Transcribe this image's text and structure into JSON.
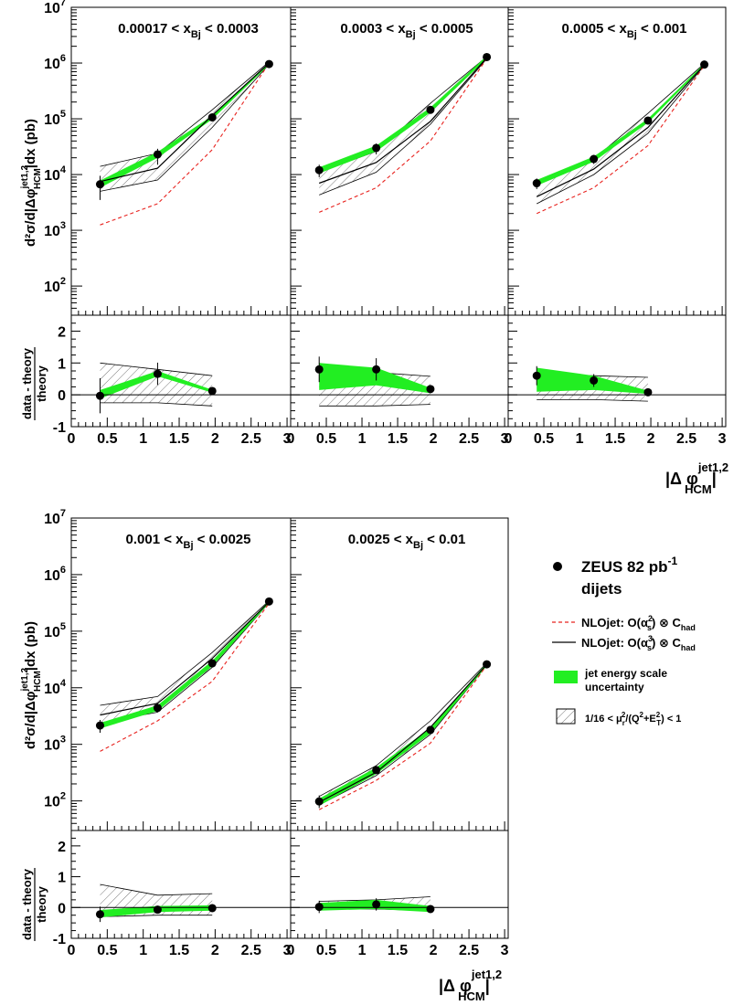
{
  "figure": {
    "x_axis_label_main": "|Δ φ",
    "x_axis_label_sup": "jet1,2",
    "x_axis_label_sub": "HCM",
    "x_axis_label_tail": "|",
    "y_axis_label_upper": "d²σ/d|Δφ",
    "y_axis_label_upper_sup": "jet1,2",
    "y_axis_label_upper_sub": "HCM",
    "y_axis_label_upper_tail": "|dx (pb)",
    "y_axis_label_ratio_num": "data - theory",
    "y_axis_label_ratio_den": "theory",
    "x_ticks": [
      "0",
      "0.5",
      "1",
      "1.5",
      "2",
      "2.5",
      "3"
    ],
    "y_ticks_main_base": "10",
    "y_ticks_main_exp": [
      "2",
      "3",
      "4",
      "5",
      "6",
      "7"
    ],
    "y_ticks_ratio": [
      "-1",
      "0",
      "1",
      "2"
    ]
  },
  "legend": {
    "data": "ZEUS 82 pb",
    "data_sup": "-1",
    "data_line2": "dijets",
    "nlo2": "NLOjet: O(α",
    "nlo2_sup": "2",
    "nlo2_sub": "s",
    "nlo2_tail": ") ⊗ C",
    "nlo2_tail_sub": "had",
    "nlo3": "NLOjet: O(α",
    "nlo3_sup": "3",
    "nlo3_sub": "s",
    "nlo3_tail": ") ⊗ C",
    "nlo3_tail_sub": "had",
    "jes_line1": "jet energy scale",
    "jes_line2": "uncertainty",
    "scale": "1/16 < μ",
    "scale_sub": "r",
    "scale_sup": "2",
    "scale_mid": "/(Q",
    "scale_sup2": "2",
    "scale_mid2": "+E",
    "scale_sup3": "2",
    "scale_sub3": "T",
    "scale_tail": ") < 1"
  },
  "colors": {
    "data": "#000000",
    "nlo2": "#e8231f",
    "nlo3": "#000000",
    "jes_band": "#22ee22",
    "hatch": "#555555"
  },
  "chart_data": [
    {
      "type": "line",
      "panel": 1,
      "title_pre": "0.00017 < x",
      "title_sub": "Bj",
      "title_post": " < 0.0003",
      "x": [
        0.4,
        1.2,
        1.96,
        2.75
      ],
      "data": [
        6700.0,
        23000.0,
        106000.0,
        960000.0
      ],
      "data_err_lo": [
        3500.0,
        15000.0,
        90000.0,
        900000.0
      ],
      "data_err_hi": [
        9500.0,
        29000.0,
        120000.0,
        1020000.0
      ],
      "nlo2": [
        1250.0,
        3000.0,
        28000.0,
        1000000.0
      ],
      "nlo3": [
        7500.0,
        13000.0,
        115000.0,
        1000000.0
      ],
      "scale_lo": [
        5000.0,
        8000.0,
        70000.0,
        950000.0
      ],
      "scale_hi": [
        14000.0,
        24000.0,
        145000.0,
        1050000.0
      ],
      "jes_lo": [
        5800.0,
        20000.0,
        98000.0,
        930000.0
      ],
      "jes_hi": [
        7800.0,
        25500.0,
        113000.0,
        990000.0
      ],
      "ratio": [
        -0.03,
        0.66,
        0.12
      ],
      "ratio_err": [
        0.55,
        0.35,
        0.12
      ],
      "ratio_scale_lo": [
        -0.25,
        -0.25,
        -0.35
      ],
      "ratio_scale_hi": [
        1.0,
        0.8,
        0.6
      ],
      "ratio_jes_lo": [
        -0.12,
        0.58,
        0.07
      ],
      "ratio_jes_hi": [
        0.15,
        0.75,
        0.16
      ],
      "ylim": [
        30,
        10000000.0
      ],
      "ratio_ylim": [
        -1,
        2.5
      ],
      "xlim": [
        0,
        3.05
      ]
    },
    {
      "type": "line",
      "panel": 2,
      "title_pre": "0.0003  < x",
      "title_sub": "Bj",
      "title_post": " < 0.0005",
      "x": [
        0.4,
        1.2,
        1.96,
        2.75
      ],
      "data": [
        12000.0,
        30000.0,
        145000.0,
        1280000.0
      ],
      "data_err_lo": [
        9000.0,
        23000.0,
        125000.0,
        1200000.0
      ],
      "data_err_hi": [
        15000.0,
        36000.0,
        165000.0,
        1360000.0
      ],
      "nlo2": [
        2100.0,
        5800.0,
        40000.0,
        1200000.0
      ],
      "nlo3": [
        7000.0,
        16500.0,
        90000.0,
        1250000.0
      ],
      "scale_lo": [
        4300.0,
        11000.0,
        80000.0,
        1200000.0
      ],
      "scale_hi": [
        11000.0,
        26000.0,
        190000.0,
        1300000.0
      ],
      "jes_lo": [
        10500.0,
        26000.0,
        130000.0,
        1200000.0
      ],
      "jes_hi": [
        13500.0,
        33000.0,
        160000.0,
        1350000.0
      ],
      "ratio": [
        0.8,
        0.8,
        0.18
      ],
      "ratio_err": [
        0.4,
        0.35,
        0.1
      ],
      "ratio_scale_lo": [
        -0.35,
        -0.35,
        -0.3
      ],
      "ratio_scale_hi": [
        0.75,
        0.7,
        0.58
      ],
      "ratio_jes_lo": [
        0.15,
        0.3,
        0.05
      ],
      "ratio_jes_hi": [
        1.0,
        0.85,
        0.22
      ],
      "ylim": [
        30,
        10000000.0
      ],
      "ratio_ylim": [
        -1,
        2.5
      ],
      "xlim": [
        0,
        3.05
      ]
    },
    {
      "type": "line",
      "panel": 3,
      "title_pre": "0.0005  < x",
      "title_sub": "Bj",
      "title_post": " < 0.001",
      "x": [
        0.4,
        1.2,
        1.96,
        2.75
      ],
      "data": [
        7000.0,
        19000.0,
        93000.0,
        940000.0
      ],
      "data_err_lo": [
        5500.0,
        15500.0,
        82000.0,
        890000.0
      ],
      "data_err_hi": [
        8500.0,
        22500.0,
        105000.0,
        990000.0
      ],
      "nlo2": [
        2000.0,
        5800.0,
        33000.0,
        900000.0
      ],
      "nlo3": [
        4000.0,
        12500.0,
        70000.0,
        930000.0
      ],
      "scale_lo": [
        3000.0,
        10000.0,
        55000.0,
        900000.0
      ],
      "scale_hi": [
        6500.0,
        19000.0,
        125000.0,
        980000.0
      ],
      "jes_lo": [
        6300.0,
        17000.0,
        85000.0,
        900000.0
      ],
      "jes_hi": [
        8000.0,
        21000.0,
        100000.0,
        980000.0
      ],
      "ratio": [
        0.6,
        0.45,
        0.08
      ],
      "ratio_err": [
        0.3,
        0.2,
        0.06
      ],
      "ratio_scale_lo": [
        -0.15,
        -0.15,
        -0.2
      ],
      "ratio_scale_hi": [
        0.6,
        0.6,
        0.55
      ],
      "ratio_jes_lo": [
        0.1,
        0.15,
        0.03
      ],
      "ratio_jes_hi": [
        0.85,
        0.6,
        0.13
      ],
      "ylim": [
        30,
        10000000.0
      ],
      "ratio_ylim": [
        -1,
        2.5
      ],
      "xlim": [
        0,
        3.05
      ]
    },
    {
      "type": "line",
      "panel": 4,
      "title_pre": "0.001   < x",
      "title_sub": "Bj",
      "title_post": " < 0.0025",
      "x": [
        0.4,
        1.2,
        1.96,
        2.75
      ],
      "data": [
        2150.0,
        4400.0,
        27000.0,
        335000.0
      ],
      "data_err_lo": [
        1600.0,
        3700.0,
        23000.0,
        310000.0
      ],
      "data_err_hi": [
        2700.0,
        5200.0,
        31000.0,
        360000.0
      ],
      "nlo2": [
        750.0,
        2600.0,
        13000.0,
        310000.0
      ],
      "nlo3": [
        3300.0,
        5300.0,
        33000.0,
        330000.0
      ],
      "scale_lo": [
        2400.0,
        3700.0,
        23000.0,
        320000.0
      ],
      "scale_hi": [
        4900.0,
        7000.0,
        42000.0,
        345000.0
      ],
      "jes_lo": [
        1900.0,
        3900.0,
        24000.0,
        315000.0
      ],
      "jes_hi": [
        2400.0,
        4900.0,
        30000.0,
        350000.0
      ],
      "ratio": [
        -0.22,
        -0.07,
        -0.02
      ],
      "ratio_err": [
        0.25,
        0.1,
        0.06
      ],
      "ratio_scale_lo": [
        -0.3,
        -0.25,
        -0.25
      ],
      "ratio_scale_hi": [
        0.75,
        0.4,
        0.45
      ],
      "ratio_jes_lo": [
        -0.32,
        -0.15,
        -0.1
      ],
      "ratio_jes_hi": [
        -0.08,
        0.05,
        0.07
      ],
      "ylim": [
        30,
        10000000.0
      ],
      "ratio_ylim": [
        -1,
        2.5
      ],
      "xlim": [
        0,
        3.05
      ]
    },
    {
      "type": "line",
      "panel": 5,
      "title_pre": "0.0025  < x",
      "title_sub": "Bj",
      "title_post": " < 0.01",
      "x": [
        0.4,
        1.2,
        1.96,
        2.75
      ],
      "data": [
        98,
        350,
        1800.0,
        26000.0
      ],
      "data_err_lo": [
        75,
        300,
        1600.0,
        24000.0
      ],
      "data_err_hi": [
        125,
        400,
        2000.0,
        28000.0
      ],
      "nlo2": [
        70,
        230,
        1050.0,
        25000.0
      ],
      "nlo3": [
        95,
        320,
        2000.0,
        26000.0
      ],
      "scale_lo": [
        85,
        280,
        1500.0,
        25000.0
      ],
      "scale_hi": [
        120,
        420,
        2600.0,
        27500.0
      ],
      "jes_lo": [
        82,
        300,
        1550.0,
        24500.0
      ],
      "jes_hi": [
        110,
        390,
        1950.0,
        27500.0
      ],
      "ratio": [
        0.02,
        0.1,
        -0.05
      ],
      "ratio_err": [
        0.2,
        0.2,
        0.08
      ],
      "ratio_scale_lo": [
        -0.05,
        -0.05,
        -0.1
      ],
      "ratio_scale_hi": [
        0.2,
        0.25,
        0.35
      ],
      "ratio_jes_lo": [
        -0.1,
        -0.05,
        -0.15
      ],
      "ratio_jes_hi": [
        0.15,
        0.25,
        0.05
      ],
      "ylim": [
        30,
        10000000.0
      ],
      "ratio_ylim": [
        -1,
        2.5
      ],
      "xlim": [
        0,
        3.05
      ]
    }
  ]
}
